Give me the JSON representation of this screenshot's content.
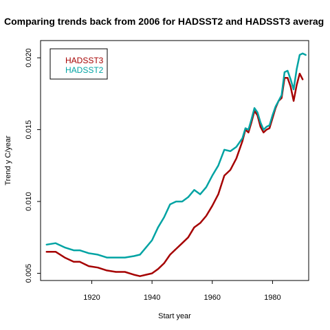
{
  "chart_data": {
    "type": "line",
    "title": "Comparing trends back from 2006 for HADSST2 and HADSST3 averag",
    "xlabel": "Start year",
    "ylabel": "Trend y C/year",
    "xlim": [
      1903,
      1992
    ],
    "ylim": [
      0.0045,
      0.0212
    ],
    "xticks": [
      1920,
      1940,
      1960,
      1980
    ],
    "yticks": [
      0.005,
      0.01,
      0.015,
      0.02
    ],
    "ytick_labels": [
      "0.005",
      "0.010",
      "0.015",
      "0.020"
    ],
    "grid": false,
    "legend_position": "top-left",
    "series": [
      {
        "name": "HADSST3",
        "color": "#a50000",
        "x": [
          1905,
          1908,
          1911,
          1914,
          1916,
          1919,
          1922,
          1925,
          1928,
          1931,
          1934,
          1936,
          1938,
          1940,
          1942,
          1944,
          1946,
          1948,
          1950,
          1952,
          1954,
          1956,
          1958,
          1960,
          1962,
          1964,
          1966,
          1968,
          1970,
          1971,
          1972,
          1973,
          1974,
          1975,
          1976,
          1977,
          1978,
          1979,
          1980,
          1981,
          1982,
          1983,
          1984,
          1985,
          1986,
          1987,
          1988,
          1989,
          1990
        ],
        "values": [
          0.0065,
          0.0065,
          0.0061,
          0.0058,
          0.0058,
          0.0055,
          0.0054,
          0.0052,
          0.0051,
          0.0051,
          0.0049,
          0.0048,
          0.0049,
          0.005,
          0.0053,
          0.0057,
          0.0063,
          0.0067,
          0.0071,
          0.0075,
          0.0082,
          0.0085,
          0.009,
          0.0097,
          0.0105,
          0.0118,
          0.0122,
          0.013,
          0.0142,
          0.015,
          0.0148,
          0.0155,
          0.0163,
          0.016,
          0.0152,
          0.0148,
          0.015,
          0.0151,
          0.0158,
          0.0165,
          0.017,
          0.0172,
          0.0186,
          0.0186,
          0.018,
          0.017,
          0.0181,
          0.0189,
          0.0185
        ]
      },
      {
        "name": "HADSST2",
        "color": "#00a3a3",
        "x": [
          1905,
          1908,
          1911,
          1914,
          1916,
          1919,
          1922,
          1925,
          1928,
          1931,
          1934,
          1936,
          1938,
          1940,
          1942,
          1944,
          1946,
          1948,
          1950,
          1952,
          1954,
          1956,
          1958,
          1960,
          1962,
          1964,
          1966,
          1968,
          1970,
          1971,
          1972,
          1973,
          1974,
          1975,
          1976,
          1977,
          1978,
          1979,
          1980,
          1981,
          1982,
          1983,
          1984,
          1985,
          1986,
          1987,
          1988,
          1989,
          1990,
          1991
        ],
        "values": [
          0.007,
          0.0071,
          0.0068,
          0.0066,
          0.0066,
          0.0064,
          0.0063,
          0.0061,
          0.0061,
          0.0061,
          0.0062,
          0.0063,
          0.0068,
          0.0073,
          0.0082,
          0.0089,
          0.0098,
          0.01,
          0.01,
          0.0103,
          0.0108,
          0.0105,
          0.011,
          0.0118,
          0.0125,
          0.0136,
          0.0135,
          0.0138,
          0.0144,
          0.0151,
          0.015,
          0.0157,
          0.0165,
          0.0162,
          0.0155,
          0.015,
          0.0152,
          0.0153,
          0.016,
          0.0166,
          0.017,
          0.0174,
          0.019,
          0.0191,
          0.0185,
          0.0178,
          0.0192,
          0.0202,
          0.0203,
          0.0202
        ]
      }
    ]
  }
}
